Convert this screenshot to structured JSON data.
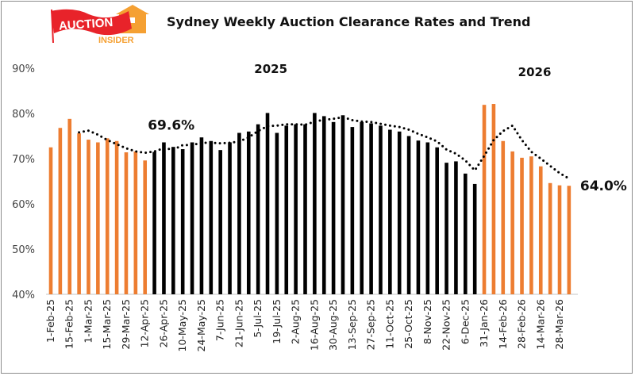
{
  "logo": {
    "text_main": "AUCTION",
    "text_sub": "INSIDER"
  },
  "chart_data": {
    "type": "bar",
    "title": "Sydney Weekly Auction Clearance Rates and Trend",
    "ylim": [
      40,
      90
    ],
    "yticks": [
      "40%",
      "50%",
      "60%",
      "70%",
      "80%",
      "90%"
    ],
    "ytick_values": [
      40,
      50,
      60,
      70,
      80,
      90
    ],
    "grid": false,
    "year_labels": [
      {
        "text": "2025",
        "at": "5-Jul-25"
      },
      {
        "text": "2026",
        "at": "28-Feb-26"
      }
    ],
    "data_labels": [
      {
        "text": "69.6%",
        "at": "12-Apr-25"
      },
      {
        "text": "64.0%",
        "at": "4-Apr-26"
      }
    ],
    "colors": {
      "highlight": "#ED7D31",
      "base": "#000000",
      "trend": "#000000"
    },
    "categories": [
      "1-Feb-25",
      "8-Feb-25",
      "15-Feb-25",
      "22-Feb-25",
      "1-Mar-25",
      "8-Mar-25",
      "15-Mar-25",
      "22-Mar-25",
      "29-Mar-25",
      "5-Apr-25",
      "12-Apr-25",
      "19-Apr-25",
      "26-Apr-25",
      "3-May-25",
      "10-May-25",
      "17-May-25",
      "24-May-25",
      "31-May-25",
      "7-Jun-25",
      "14-Jun-25",
      "21-Jun-25",
      "28-Jun-25",
      "5-Jul-25",
      "12-Jul-25",
      "19-Jul-25",
      "26-Jul-25",
      "2-Aug-25",
      "9-Aug-25",
      "16-Aug-25",
      "23-Aug-25",
      "30-Aug-25",
      "6-Sep-25",
      "13-Sep-25",
      "20-Sep-25",
      "27-Sep-25",
      "4-Oct-25",
      "11-Oct-25",
      "18-Oct-25",
      "25-Oct-25",
      "1-Nov-25",
      "8-Nov-25",
      "15-Nov-25",
      "22-Nov-25",
      "29-Nov-25",
      "6-Dec-25",
      "13-Dec-25",
      "31-Jan-26",
      "7-Feb-26",
      "14-Feb-26",
      "21-Feb-26",
      "28-Feb-26",
      "7-Mar-26",
      "14-Mar-26",
      "21-Mar-26",
      "28-Mar-26",
      "4-Apr-26"
    ],
    "series": [
      {
        "type": "bar",
        "values": [
          72.5,
          76.8,
          78.8,
          75.6,
          74.2,
          73.6,
          74.5,
          73.9,
          71.4,
          71.6,
          69.6,
          71.5,
          73.6,
          72.6,
          72.1,
          73.6,
          74.7,
          73.9,
          71.9,
          73.6,
          75.7,
          76.0,
          77.6,
          80.1,
          75.7,
          77.3,
          77.6,
          77.6,
          80.1,
          79.4,
          78.1,
          79.6,
          77.0,
          78.1,
          77.8,
          77.3,
          76.4,
          76.0,
          75.0,
          74.0,
          73.6,
          72.5,
          69.1,
          69.4,
          66.7,
          64.4,
          81.9,
          82.1,
          73.9,
          71.6,
          70.2,
          70.5,
          68.3,
          64.6,
          64.1,
          64.0
        ],
        "highlighted": [
          true,
          true,
          true,
          true,
          true,
          true,
          true,
          true,
          true,
          true,
          true,
          false,
          false,
          false,
          false,
          false,
          false,
          false,
          false,
          false,
          false,
          false,
          false,
          false,
          false,
          false,
          false,
          false,
          false,
          false,
          false,
          false,
          false,
          false,
          false,
          false,
          false,
          false,
          false,
          false,
          false,
          false,
          false,
          false,
          false,
          false,
          true,
          true,
          true,
          true,
          true,
          true,
          true,
          true,
          true,
          true
        ]
      },
      {
        "type": "line",
        "style": "dotted",
        "values": [
          null,
          null,
          null,
          75.8,
          76.2,
          75.3,
          74.1,
          73.2,
          72.3,
          71.6,
          71.3,
          71.6,
          72.3,
          72.0,
          73.0,
          73.0,
          73.5,
          73.5,
          73.4,
          73.5,
          73.8,
          74.7,
          76.1,
          77.2,
          77.3,
          77.6,
          77.6,
          77.5,
          78.2,
          78.6,
          78.8,
          79.2,
          78.5,
          78.2,
          78.1,
          77.7,
          77.3,
          77.0,
          76.4,
          75.5,
          74.7,
          73.8,
          72.0,
          71.1,
          69.6,
          67.4,
          70.6,
          74.1,
          76.1,
          77.3,
          74.1,
          71.5,
          70.0,
          68.4,
          66.8,
          65.6
        ]
      }
    ]
  }
}
